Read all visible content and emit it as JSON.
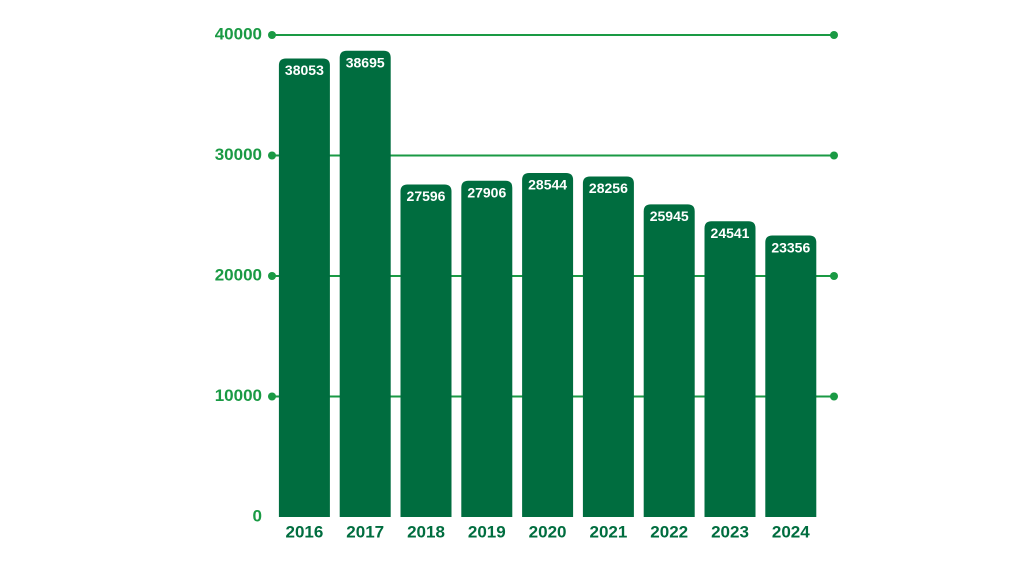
{
  "chart_data": {
    "type": "bar",
    "categories": [
      "2016",
      "2017",
      "2018",
      "2019",
      "2020",
      "2021",
      "2022",
      "2023",
      "2024"
    ],
    "values": [
      38053,
      38695,
      27596,
      27906,
      28544,
      28256,
      25945,
      24541,
      23356
    ],
    "color": "#006d3f",
    "grid_color": "#1a9a44",
    "ylim": [
      0,
      40000
    ],
    "yticks": [
      0,
      10000,
      20000,
      30000,
      40000
    ],
    "grid": true
  }
}
